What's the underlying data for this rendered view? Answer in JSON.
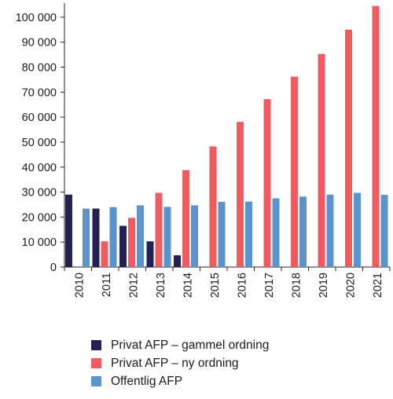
{
  "chart_data": {
    "type": "bar",
    "categories": [
      "2010",
      "2011",
      "2012",
      "2013",
      "2014",
      "2015",
      "2016",
      "2017",
      "2018",
      "2019",
      "2020",
      "2021"
    ],
    "series": [
      {
        "name": "Privat AFP – gammel ordning",
        "color": "#232152",
        "values": [
          29000,
          23400,
          16500,
          10300,
          4700,
          0,
          0,
          0,
          0,
          0,
          0,
          0
        ]
      },
      {
        "name": "Privat AFP – ny ordning",
        "color": "#ef5b5f",
        "values": [
          0,
          10300,
          19700,
          29700,
          38800,
          48300,
          58100,
          67200,
          76200,
          85300,
          95000,
          104500
        ]
      },
      {
        "name": "Offentlig AFP",
        "color": "#5b93cf",
        "values": [
          23400,
          24000,
          24700,
          24100,
          24700,
          26100,
          26200,
          27500,
          28200,
          29000,
          29700,
          28900
        ]
      }
    ],
    "yticks": [
      "0",
      "10 000",
      "20 000",
      "30 000",
      "40 000",
      "50 000",
      "60 000",
      "70 000",
      "80 000",
      "90 000",
      "100 000"
    ],
    "ylim": [
      0,
      105000
    ],
    "grid": false,
    "legend_position": "bottom",
    "title": "",
    "xlabel": "",
    "ylabel": ""
  }
}
